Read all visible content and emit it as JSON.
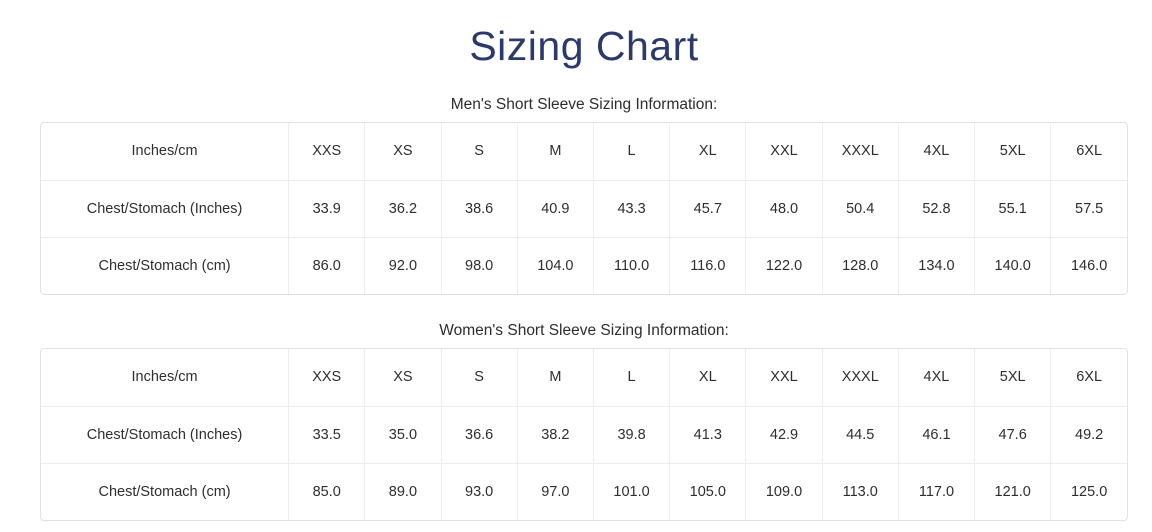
{
  "page": {
    "title": "Sizing Chart",
    "title_color": "#2b3a6b",
    "border_color": "#e2e2e2"
  },
  "tables": [
    {
      "caption": "Men's Short Sleeve Sizing Information:",
      "columns": [
        "Inches/cm",
        "XXS",
        "XS",
        "S",
        "M",
        "L",
        "XL",
        "XXL",
        "XXXL",
        "4XL",
        "5XL",
        "6XL"
      ],
      "rows": [
        {
          "label": "Chest/Stomach (Inches)",
          "values": [
            "33.9",
            "36.2",
            "38.6",
            "40.9",
            "43.3",
            "45.7",
            "48.0",
            "50.4",
            "52.8",
            "55.1",
            "57.5"
          ]
        },
        {
          "label": "Chest/Stomach (cm)",
          "values": [
            "86.0",
            "92.0",
            "98.0",
            "104.0",
            "110.0",
            "116.0",
            "122.0",
            "128.0",
            "134.0",
            "140.0",
            "146.0"
          ]
        }
      ]
    },
    {
      "caption": "Women's Short Sleeve Sizing Information:",
      "columns": [
        "Inches/cm",
        "XXS",
        "XS",
        "S",
        "M",
        "L",
        "XL",
        "XXL",
        "XXXL",
        "4XL",
        "5XL",
        "6XL"
      ],
      "rows": [
        {
          "label": "Chest/Stomach (Inches)",
          "values": [
            "33.5",
            "35.0",
            "36.6",
            "38.2",
            "39.8",
            "41.3",
            "42.9",
            "44.5",
            "46.1",
            "47.6",
            "49.2"
          ]
        },
        {
          "label": "Chest/Stomach (cm)",
          "values": [
            "85.0",
            "89.0",
            "93.0",
            "97.0",
            "101.0",
            "105.0",
            "109.0",
            "113.0",
            "117.0",
            "121.0",
            "125.0"
          ]
        }
      ]
    }
  ]
}
